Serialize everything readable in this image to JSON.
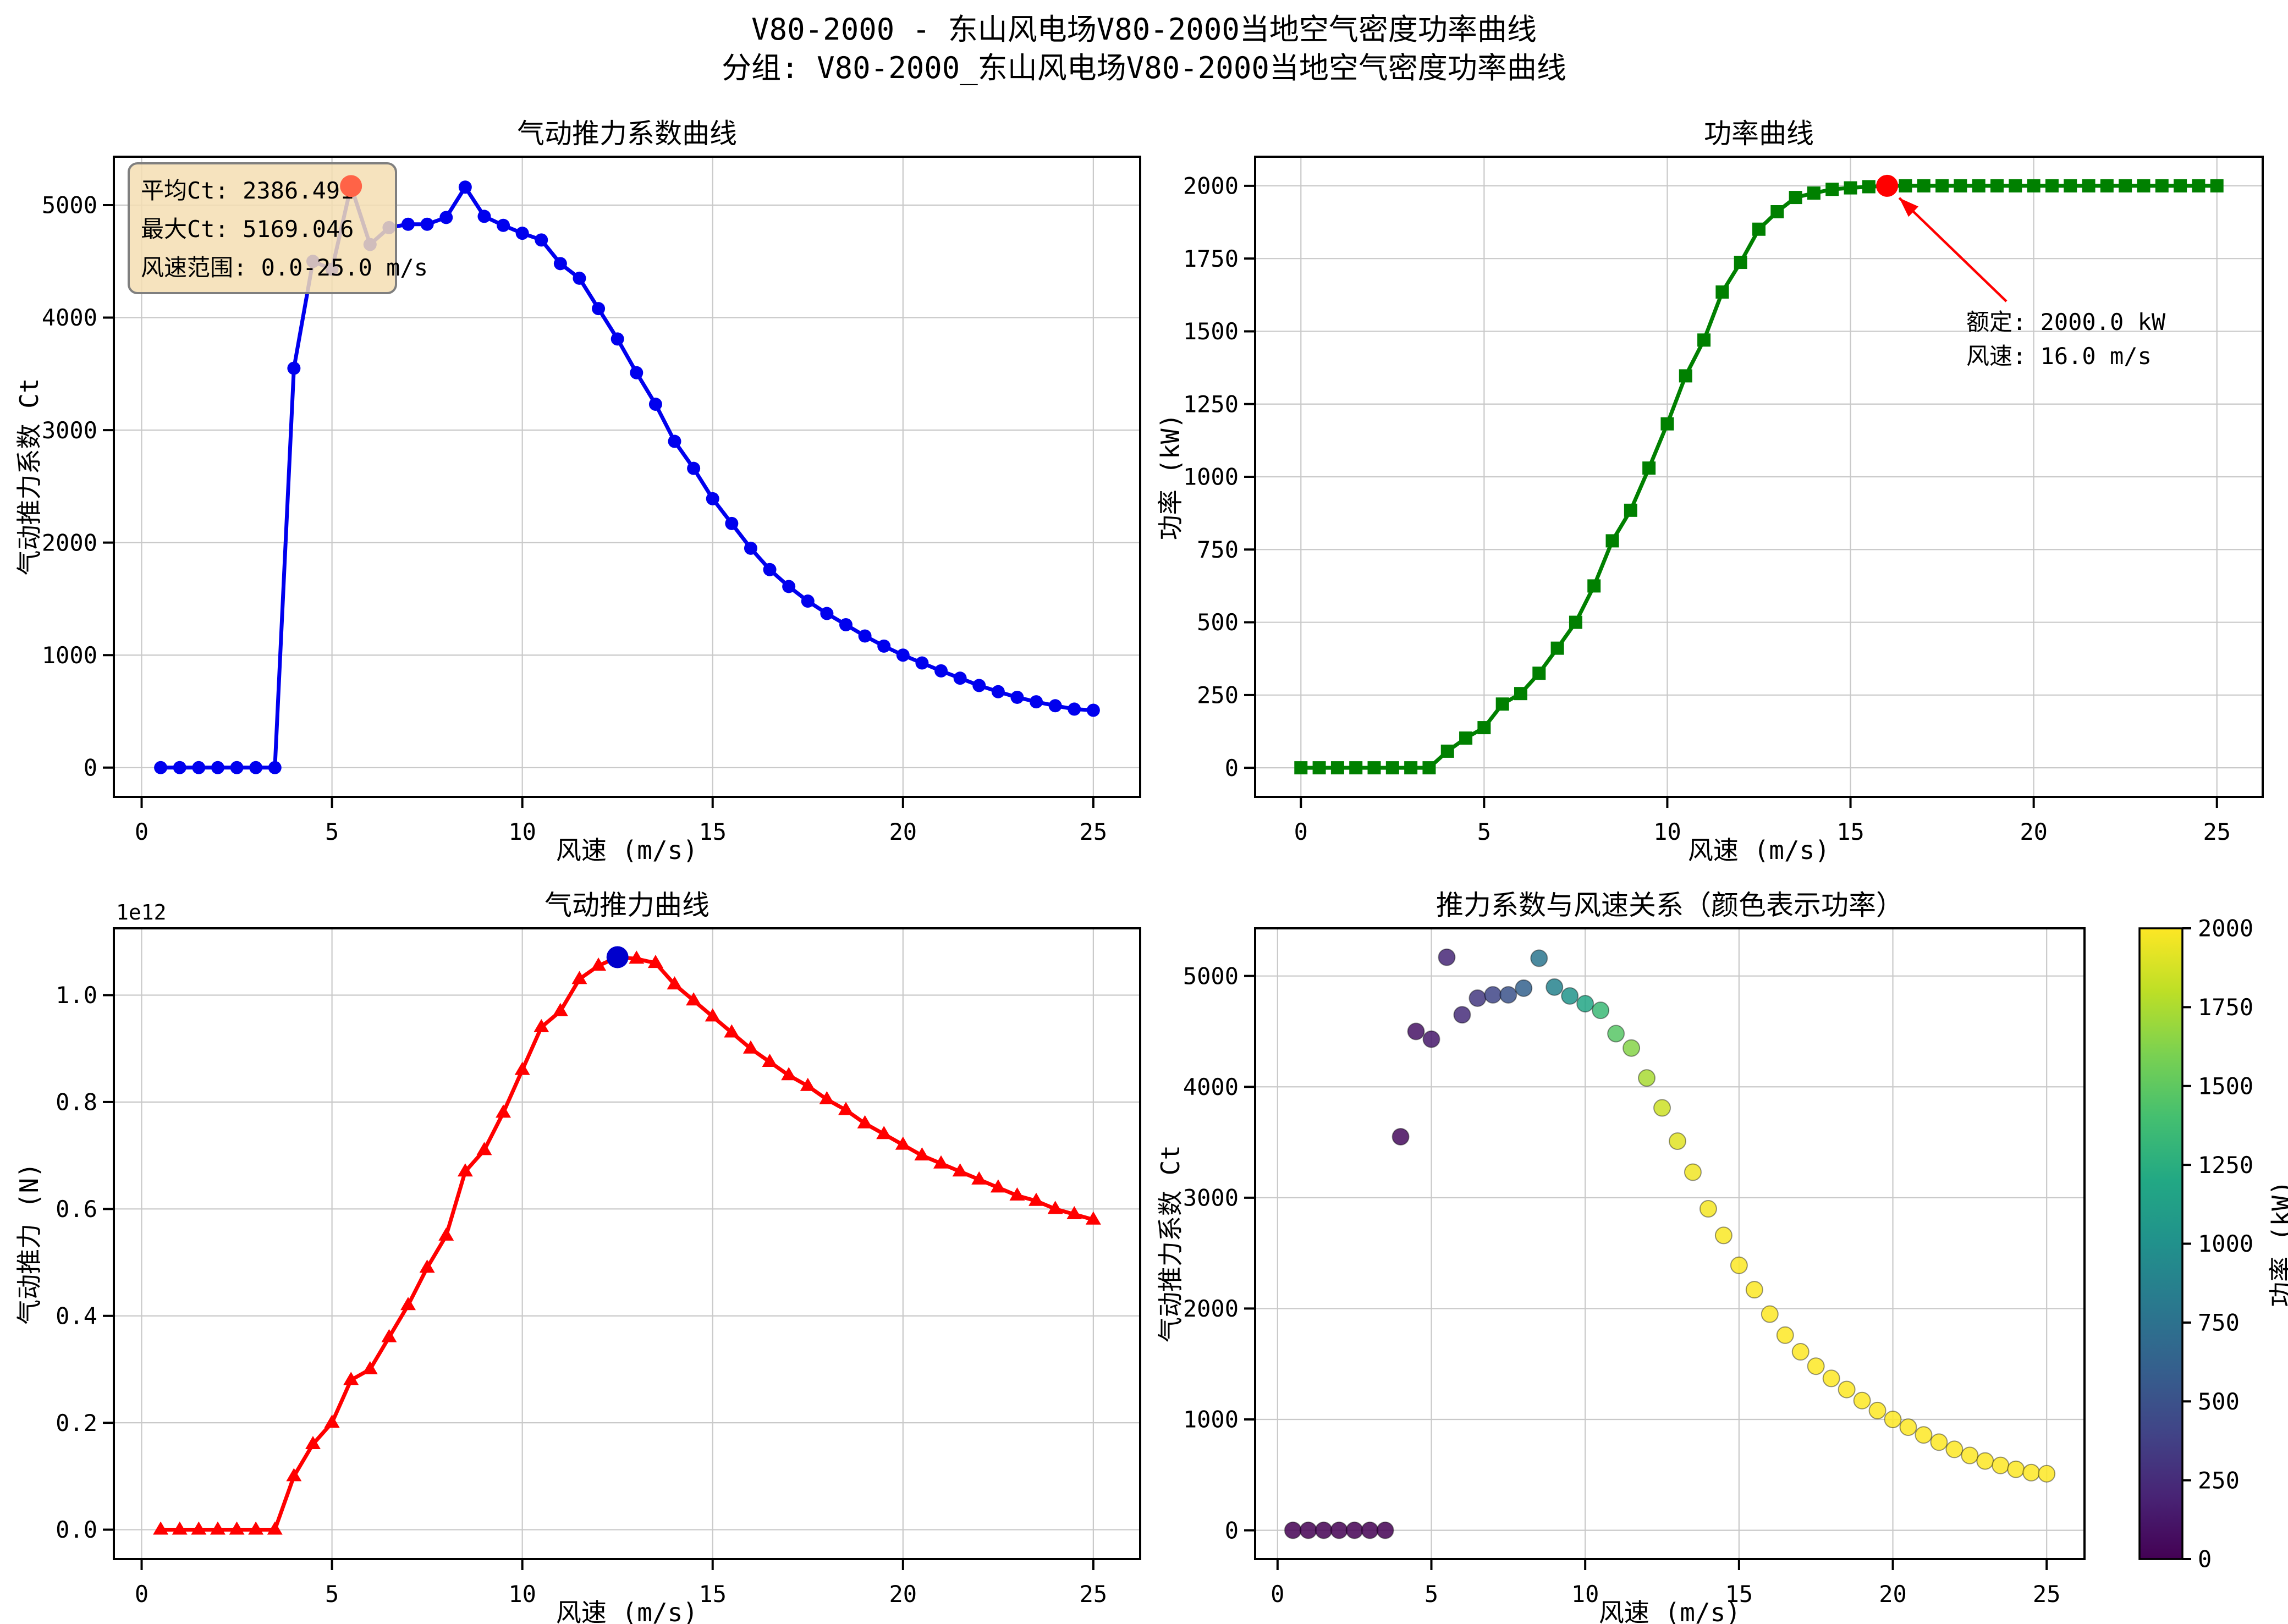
{
  "figure": {
    "title": "V80-2000 - 东山风电场V80-2000当地空气密度功率曲线",
    "subtitle": "分组: V80-2000_东山风电场V80-2000当地空气密度功率曲线",
    "background": "#ffffff",
    "grid_color": "#c9c9c9",
    "spine_color": "#000000"
  },
  "colormap": {
    "name": "viridis",
    "stops": [
      "#440154",
      "#482475",
      "#414487",
      "#355f8d",
      "#2a788e",
      "#21918c",
      "#22a884",
      "#44bf70",
      "#7ad151",
      "#bddf26",
      "#fde725"
    ]
  },
  "chart_data": [
    {
      "id": "ct-curve",
      "type": "line",
      "title": "气动推力系数曲线",
      "xlabel": "风速 (m/s)",
      "ylabel": "气动推力系数 Ct",
      "line_color": "#0000ee",
      "marker": "circle",
      "x": [
        0.5,
        1,
        1.5,
        2,
        2.5,
        3,
        3.5,
        4,
        4.5,
        5,
        5.5,
        6,
        6.5,
        7,
        7.5,
        8,
        8.5,
        9,
        9.5,
        10,
        10.5,
        11,
        11.5,
        12,
        12.5,
        13,
        13.5,
        14,
        14.5,
        15,
        15.5,
        16,
        16.5,
        17,
        17.5,
        18,
        18.5,
        19,
        19.5,
        20,
        20.5,
        21,
        21.5,
        22,
        22.5,
        23,
        23.5,
        24,
        24.5,
        25
      ],
      "y": [
        0,
        0,
        0,
        0,
        0,
        0,
        0,
        3550,
        4500,
        4430,
        5169,
        4650,
        4800,
        4830,
        4830,
        4890,
        5160,
        4900,
        4820,
        4750,
        4690,
        4480,
        4350,
        4080,
        3810,
        3510,
        3230,
        2900,
        2660,
        2390,
        2170,
        1950,
        1760,
        1610,
        1480,
        1370,
        1270,
        1170,
        1080,
        1000,
        930,
        860,
        795,
        730,
        675,
        625,
        585,
        550,
        520,
        510
      ],
      "xlim": [
        -0.73,
        26.23
      ],
      "ylim": [
        -260,
        5430
      ],
      "xticks": [
        0,
        5,
        10,
        15,
        20,
        25
      ],
      "yticks": [
        0,
        1000,
        2000,
        3000,
        4000,
        5000
      ],
      "highlight_point": {
        "x": 5.5,
        "y": 5169.046,
        "color": "#ff6347"
      },
      "info_box": {
        "lines": [
          "平均Ct: 2386.491",
          "最大Ct: 5169.046",
          "风速范围: 0.0-25.0 m/s"
        ],
        "fill": "#f5deb3",
        "edge": "#7f7f7f"
      }
    },
    {
      "id": "power-curve",
      "type": "line",
      "title": "功率曲线",
      "xlabel": "风速 (m/s)",
      "ylabel": "功率 (kW)",
      "line_color": "#008000",
      "marker": "square",
      "x": [
        0,
        0.5,
        1,
        1.5,
        2,
        2.5,
        3,
        3.5,
        4,
        4.5,
        5,
        5.5,
        6,
        6.5,
        7,
        7.5,
        8,
        8.5,
        9,
        9.5,
        10,
        10.5,
        11,
        11.5,
        12,
        12.5,
        13,
        13.5,
        14,
        14.5,
        15,
        15.5,
        16,
        16.5,
        17,
        17.5,
        18,
        18.5,
        19,
        19.5,
        20,
        20.5,
        21,
        21.5,
        22,
        22.5,
        23,
        23.5,
        24,
        24.5,
        25
      ],
      "y": [
        0,
        0,
        0,
        0,
        0,
        0,
        0,
        0,
        57,
        102,
        138,
        219,
        255,
        325,
        411,
        500,
        625,
        780,
        885,
        1030,
        1182,
        1347,
        1470,
        1635,
        1737,
        1851,
        1911,
        1960,
        1975,
        1988,
        1993,
        1997,
        2000,
        2000,
        2000,
        2000,
        2000,
        2000,
        2000,
        2000,
        2000,
        2000,
        2000,
        2000,
        2000,
        2000,
        2000,
        2000,
        2000,
        2000,
        2000
      ],
      "xlim": [
        -1.25,
        26.25
      ],
      "ylim": [
        -100,
        2100
      ],
      "xticks": [
        0,
        5,
        10,
        15,
        20,
        25
      ],
      "yticks": [
        0,
        250,
        500,
        750,
        1000,
        1250,
        1500,
        1750,
        2000
      ],
      "highlight_point": {
        "x": 16,
        "y": 2000,
        "color": "#ff0000"
      },
      "annotation": {
        "lines": [
          "额定: 2000.0 kW",
          "风速: 16.0 m/s"
        ],
        "color": "#ff0000"
      }
    },
    {
      "id": "thrust-curve",
      "type": "line",
      "title": "气动推力曲线",
      "xlabel": "风速 (m/s)",
      "ylabel": "气动推力 (N)",
      "offset_text": "1e12",
      "unit": "1e12 N",
      "line_color": "#ff0000",
      "marker": "triangle",
      "x": [
        0.5,
        1,
        1.5,
        2,
        2.5,
        3,
        3.5,
        4,
        4.5,
        5,
        5.5,
        6,
        6.5,
        7,
        7.5,
        8,
        8.5,
        9,
        9.5,
        10,
        10.5,
        11,
        11.5,
        12,
        12.5,
        13,
        13.5,
        14,
        14.5,
        15,
        15.5,
        16,
        16.5,
        17,
        17.5,
        18,
        18.5,
        19,
        19.5,
        20,
        20.5,
        21,
        21.5,
        22,
        22.5,
        23,
        23.5,
        24,
        24.5,
        25
      ],
      "y": [
        0,
        0,
        0,
        0,
        0,
        0,
        0,
        0.1,
        0.16,
        0.2,
        0.28,
        0.3,
        0.36,
        0.42,
        0.49,
        0.55,
        0.67,
        0.71,
        0.78,
        0.86,
        0.94,
        0.97,
        1.03,
        1.055,
        1.071,
        1.068,
        1.06,
        1.02,
        0.99,
        0.96,
        0.93,
        0.9,
        0.875,
        0.85,
        0.83,
        0.805,
        0.785,
        0.76,
        0.74,
        0.72,
        0.7,
        0.685,
        0.67,
        0.655,
        0.64,
        0.625,
        0.615,
        0.6,
        0.59,
        0.58
      ],
      "xlim": [
        -0.73,
        26.23
      ],
      "ylim": [
        -0.055,
        1.125
      ],
      "xticks": [
        0,
        5,
        10,
        15,
        20,
        25
      ],
      "yticks": [
        0.0,
        0.2,
        0.4,
        0.6,
        0.8,
        1.0
      ],
      "ytick_format": "1dp",
      "highlight_point": {
        "x": 12.5,
        "y": 1.071,
        "color": "#0000cc"
      }
    },
    {
      "id": "ct-ws-scatter",
      "type": "scatter",
      "title": "推力系数与风速关系（颜色表示功率）",
      "xlabel": "风速 (m/s)",
      "ylabel": "气动推力系数 Ct",
      "x": [
        0.5,
        1,
        1.5,
        2,
        2.5,
        3,
        3.5,
        4,
        4.5,
        5,
        5.5,
        6,
        6.5,
        7,
        7.5,
        8,
        8.5,
        9,
        9.5,
        10,
        10.5,
        11,
        11.5,
        12,
        12.5,
        13,
        13.5,
        14,
        14.5,
        15,
        15.5,
        16,
        16.5,
        17,
        17.5,
        18,
        18.5,
        19,
        19.5,
        20,
        20.5,
        21,
        21.5,
        22,
        22.5,
        23,
        23.5,
        24,
        24.5,
        25
      ],
      "y": [
        0,
        0,
        0,
        0,
        0,
        0,
        0,
        3550,
        4500,
        4430,
        5169,
        4650,
        4800,
        4830,
        4830,
        4890,
        5160,
        4900,
        4820,
        4750,
        4690,
        4480,
        4350,
        4080,
        3810,
        3510,
        3230,
        2900,
        2660,
        2390,
        2170,
        1950,
        1760,
        1610,
        1480,
        1370,
        1270,
        1170,
        1080,
        1000,
        930,
        860,
        795,
        730,
        675,
        625,
        585,
        550,
        520,
        510
      ],
      "c": [
        0,
        0,
        0,
        0,
        0,
        0,
        0,
        57,
        102,
        138,
        219,
        255,
        325,
        411,
        500,
        625,
        780,
        885,
        1030,
        1182,
        1347,
        1470,
        1635,
        1737,
        1851,
        1911,
        1960,
        1975,
        1988,
        1993,
        1997,
        2000,
        2000,
        2000,
        2000,
        2000,
        2000,
        2000,
        2000,
        2000,
        2000,
        2000,
        2000,
        2000,
        2000,
        2000,
        2000,
        2000,
        2000,
        2000
      ],
      "xlim": [
        -0.73,
        26.23
      ],
      "ylim": [
        -260,
        5430
      ],
      "xticks": [
        0,
        5,
        10,
        15,
        20,
        25
      ],
      "yticks": [
        0,
        1000,
        2000,
        3000,
        4000,
        5000
      ],
      "colorbar": {
        "label": "功率 (kW)",
        "ticks": [
          0,
          250,
          500,
          750,
          1000,
          1250,
          1500,
          1750,
          2000
        ],
        "vmin": 0,
        "vmax": 2000
      }
    }
  ]
}
